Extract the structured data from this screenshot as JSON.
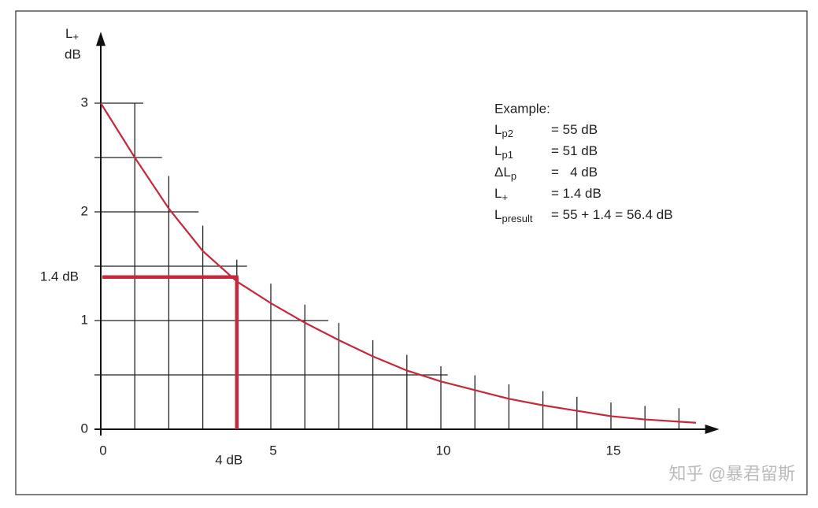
{
  "chart_data": {
    "type": "line",
    "ylabel": {
      "text": "L",
      "sub": "+"
    },
    "ylabel_unit": "dB",
    "x": [
      0,
      1,
      2,
      3,
      4,
      5,
      6,
      7,
      8,
      9,
      10,
      11,
      12,
      13,
      14,
      15,
      16,
      17,
      17.5
    ],
    "values": [
      3.0,
      2.5,
      2.03,
      1.64,
      1.36,
      1.16,
      0.98,
      0.82,
      0.67,
      0.54,
      0.44,
      0.36,
      0.28,
      0.22,
      0.17,
      0.12,
      0.09,
      0.07,
      0.06
    ],
    "color": "#c8283a",
    "xlim": [
      0,
      18
    ],
    "ylim": [
      0,
      3.6
    ],
    "xticks": [
      0,
      5,
      10,
      15
    ],
    "yticks": [
      0,
      1,
      2,
      3
    ],
    "grid": true,
    "marker": {
      "x": 4,
      "y": 1.4,
      "x_label": "4 dB",
      "y_label": "1.4 dB",
      "color": "#c8283a"
    },
    "example": {
      "title": "Example:",
      "lines": [
        {
          "sym": "L",
          "sub": "p2",
          "eq": "= 55 dB"
        },
        {
          "sym": "L",
          "sub": "p1",
          "eq": "= 51 dB"
        },
        {
          "sym": "ΔL",
          "sub": "p",
          "eq": "=   4 dB"
        },
        {
          "sym": "L",
          "sub": "+",
          "eq": "= 1.4 dB"
        },
        {
          "sym": "L",
          "sub": "presult",
          "eq": "= 55 + 1.4 = 56.4 dB"
        }
      ]
    },
    "watermark": "知乎 @暴君留斯"
  }
}
